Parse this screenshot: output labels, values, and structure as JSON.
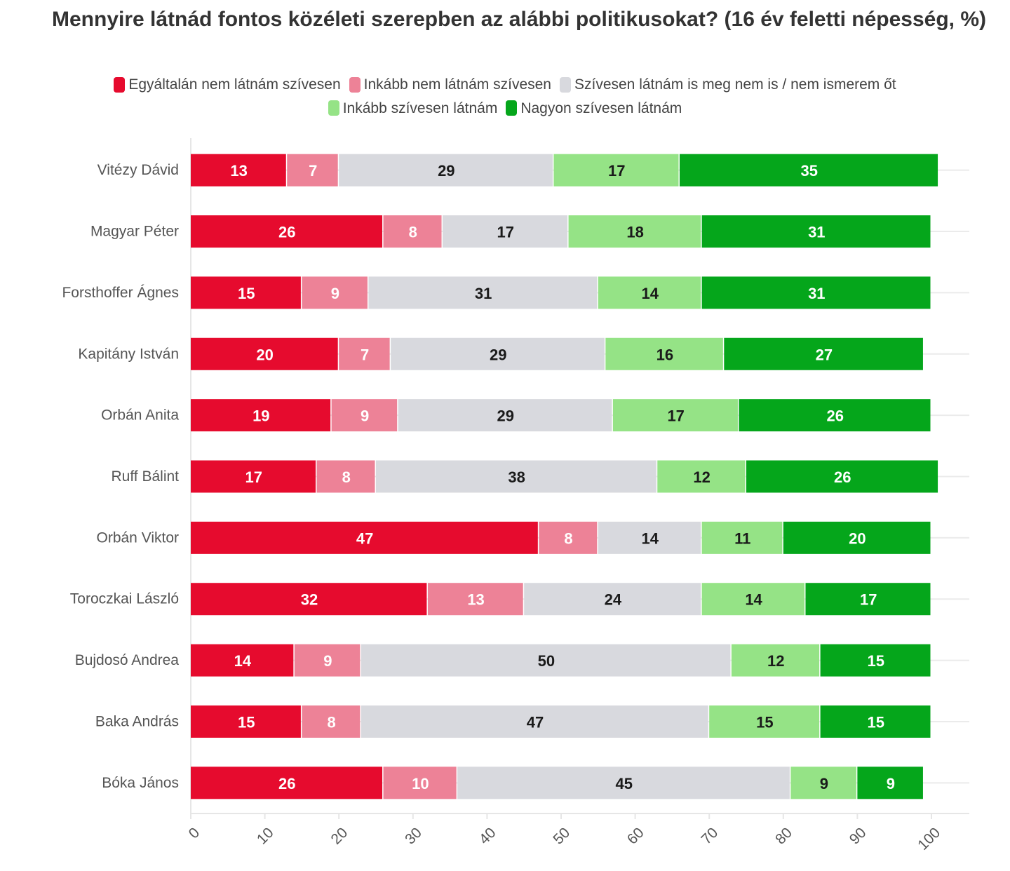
{
  "colors": {
    "background": "#ffffff",
    "series": [
      "#e60b2e",
      "#ed8297",
      "#d8d9de",
      "#95e386",
      "#05a61b"
    ],
    "gridline": "#ebebeb",
    "axis": "#e6e6e6"
  },
  "chart_data": {
    "type": "bar",
    "orientation": "horizontal",
    "stacked": true,
    "title": "Mennyire látnád fontos közéleti szerepben az alábbi politikusokat? (16 év feletti népesség, %)",
    "categories": [
      "Vitézy Dávid",
      "Magyar Péter",
      "Forsthoffer Ágnes",
      "Kapitány István",
      "Orbán Anita",
      "Ruff Bálint",
      "Orbán Viktor",
      "Toroczkai László",
      "Bujdosó Andrea",
      "Baka András",
      "Bóka János"
    ],
    "series": [
      {
        "name": "Egyáltalán nem látnám szívesen",
        "values": [
          13,
          26,
          15,
          20,
          19,
          17,
          47,
          32,
          14,
          15,
          26
        ]
      },
      {
        "name": "Inkább nem látnám szívesen",
        "values": [
          7,
          8,
          9,
          7,
          9,
          8,
          8,
          13,
          9,
          8,
          10
        ]
      },
      {
        "name": "Szívesen látnám is meg nem is / nem ismerem őt",
        "values": [
          29,
          17,
          31,
          29,
          29,
          38,
          14,
          24,
          50,
          47,
          45
        ]
      },
      {
        "name": "Inkább szívesen látnám",
        "values": [
          17,
          18,
          14,
          16,
          17,
          12,
          11,
          14,
          12,
          15,
          9
        ]
      },
      {
        "name": "Nagyon szívesen látnám",
        "values": [
          35,
          31,
          31,
          27,
          26,
          26,
          20,
          17,
          15,
          15,
          9
        ]
      }
    ],
    "xlim": [
      0,
      100
    ],
    "xticks": [
      "0",
      "10",
      "20",
      "30",
      "40",
      "50",
      "60",
      "70",
      "80",
      "90",
      "100"
    ],
    "legend_position": "top",
    "grid": true
  }
}
